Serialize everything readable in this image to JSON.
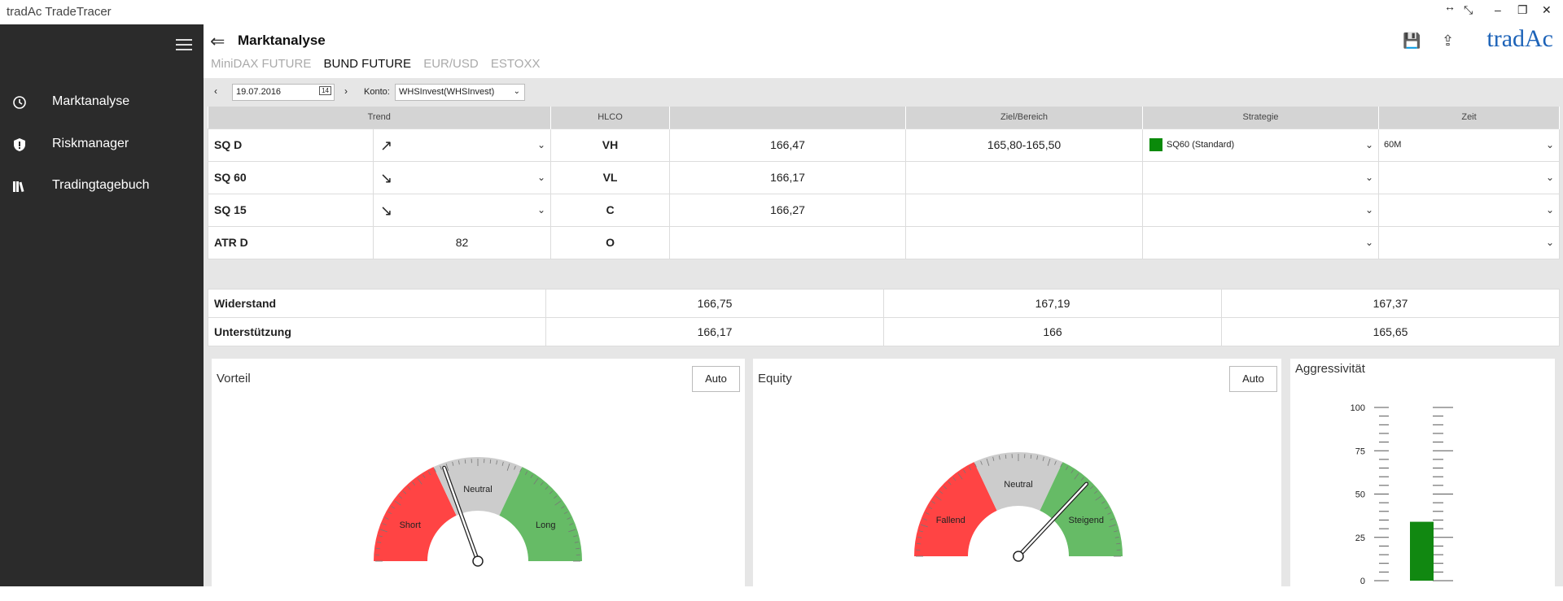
{
  "app": {
    "title": "tradAc TradeTracer"
  },
  "sidebar": {
    "items": [
      {
        "label": "Marktanalyse",
        "icon": "clock-icon"
      },
      {
        "label": "Riskmanager",
        "icon": "shield-icon"
      },
      {
        "label": "Tradingtagebuch",
        "icon": "books-icon"
      }
    ]
  },
  "header": {
    "title": "Marktanalyse",
    "tabs": [
      "MiniDAX FUTURE",
      "BUND FUTURE",
      "EUR/USD",
      "ESTOXX"
    ],
    "active_tab": "BUND FUTURE",
    "logo": "tradAc"
  },
  "toolbar": {
    "date": "19.07.2016",
    "calendar_day": "14",
    "konto_label": "Konto:",
    "konto_value": "WHSInvest(WHSInvest)"
  },
  "table": {
    "headers": {
      "trend": "Trend",
      "hlco": "HLCO",
      "blank": "",
      "ziel": "Ziel/Bereich",
      "strategie": "Strategie",
      "zeit": "Zeit"
    },
    "rows": [
      {
        "label": "SQ D",
        "trend": "↗",
        "hlco": "VH",
        "value": "166,47",
        "ziel": "165,80-165,50",
        "strategie": "SQ60 (Standard)",
        "zeit": "60M"
      },
      {
        "label": "SQ 60",
        "trend": "↘",
        "hlco": "VL",
        "value": "166,17",
        "ziel": "",
        "strategie": "",
        "zeit": ""
      },
      {
        "label": "SQ 15",
        "trend": "↘",
        "hlco": "C",
        "value": "166,27",
        "ziel": "",
        "strategie": "",
        "zeit": ""
      },
      {
        "label": "ATR D",
        "trend": "82",
        "hlco": "O",
        "value": "",
        "ziel": "",
        "strategie": "",
        "zeit": ""
      }
    ],
    "strategy_color": "#0a8a0a"
  },
  "levels": {
    "rows": [
      {
        "label": "Widerstand",
        "v1": "166,75",
        "v2": "167,19",
        "v3": "167,37"
      },
      {
        "label": "Unterstützung",
        "v1": "166,17",
        "v2": "166",
        "v3": "165,65"
      }
    ]
  },
  "gauges": {
    "vorteil": {
      "title": "Vorteil",
      "auto_label": "Auto",
      "left": "Short",
      "center": "Neutral",
      "right": "Long",
      "needle_level": 0.39
    },
    "equity": {
      "title": "Equity",
      "auto_label": "Auto",
      "left": "Fallend",
      "center": "Neutral",
      "right": "Steigend",
      "needle_level": 0.74
    }
  },
  "aggressivitaet": {
    "title": "Aggressivität",
    "ticks": [
      "100",
      "75",
      "50",
      "25",
      "0"
    ],
    "value": 34
  },
  "colors": {
    "red": "#ff4444",
    "gray": "#cccccc",
    "green": "#66bb66",
    "bar": "#118811"
  }
}
